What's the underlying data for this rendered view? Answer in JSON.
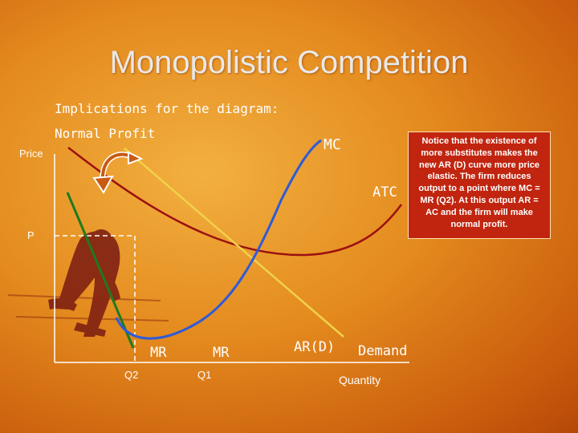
{
  "title": "Monopolistic Competition",
  "subtitle": "Implications for the diagram:",
  "normal_profit": "Normal Profit",
  "axes": {
    "y_label": "Price",
    "x_label": "Quantity"
  },
  "curve_labels": {
    "mc": "MC",
    "atc": "ATC",
    "mr_new": "MR",
    "mr_old": "MR",
    "ar": "AR(D)",
    "demand": "Demand"
  },
  "points": {
    "price": "P",
    "q2": "Q2",
    "q1": "Q1"
  },
  "note": "Notice that the existence of more substitutes makes the new AR (D) curve more price elastic. The firm reduces output to a point where MC = MR (Q2). At this output AR = AC and the firm will make normal profit.",
  "colors": {
    "mc": "#2f5bd8",
    "atc": "#9c1010",
    "mr_new": "#1e7a1e",
    "ar": "#f0d24a",
    "note_bg": "#c1250f"
  },
  "icons": [
    "curved-arrow-icon",
    "runner-image"
  ]
}
